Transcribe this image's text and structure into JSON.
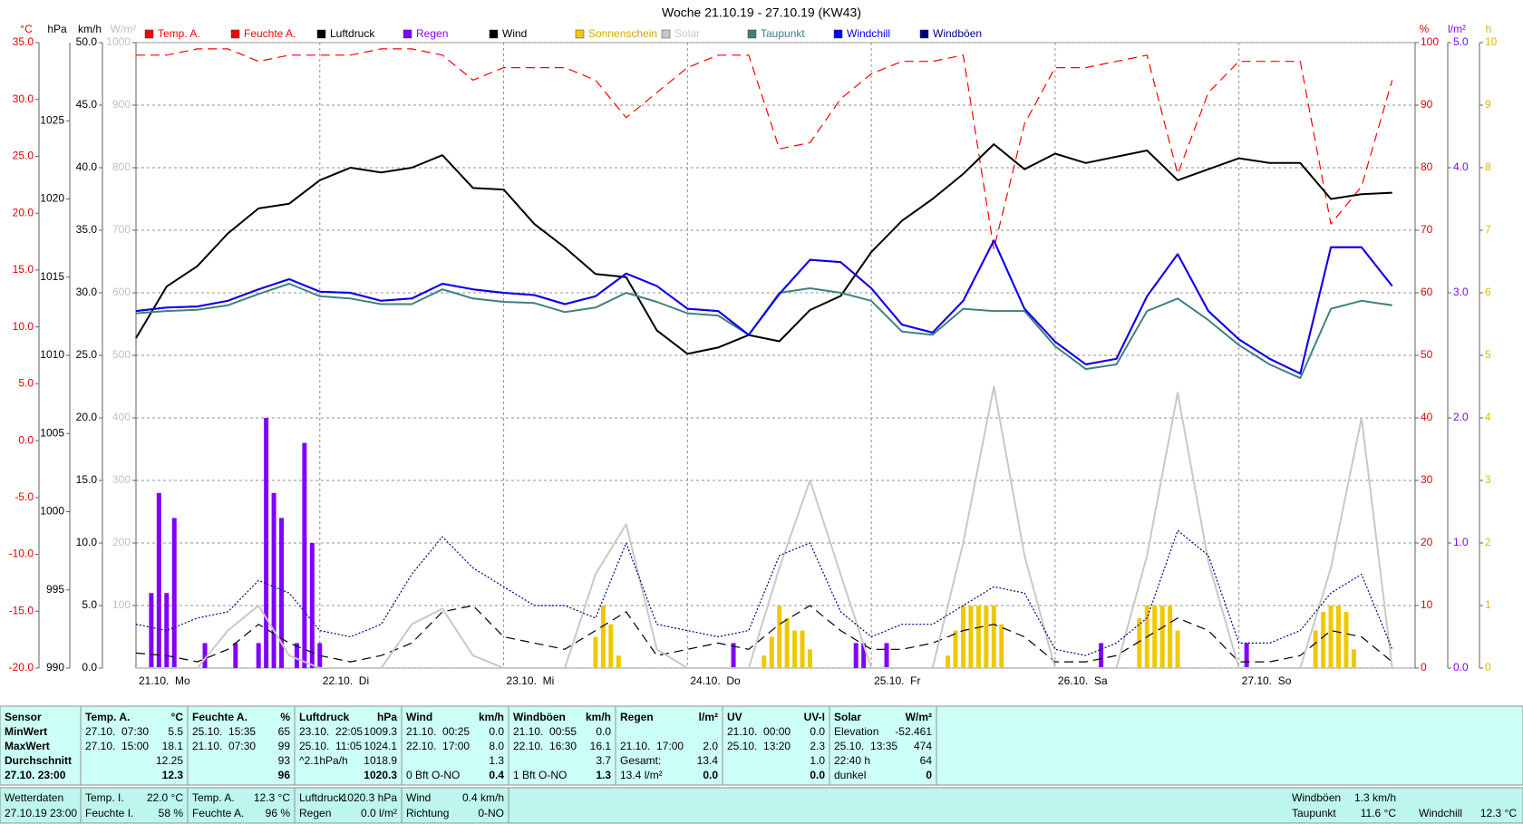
{
  "chart_data": {
    "type": "line",
    "title": "Woche 21.10.19 - 27.10.19 (KW43)",
    "legend": "top",
    "grid": true,
    "x": [
      0,
      4,
      8,
      12,
      16,
      20,
      24,
      28,
      32,
      36,
      40,
      44,
      48,
      52,
      56,
      60,
      64,
      68,
      72,
      76,
      80,
      84,
      88,
      92,
      96,
      100,
      104,
      108,
      112,
      116,
      120,
      124,
      128,
      132,
      136,
      140,
      144,
      148,
      152,
      156,
      160,
      164
    ],
    "xlim": [
      0,
      167
    ],
    "xticks": [
      {
        "value": 0,
        "label": "21.10.  Mo"
      },
      {
        "value": 24,
        "label": "22.10.  Di"
      },
      {
        "value": 48,
        "label": "23.10.  Mi"
      },
      {
        "value": 72,
        "label": "24.10.  Do"
      },
      {
        "value": 96,
        "label": "25.10.  Fr"
      },
      {
        "value": 120,
        "label": "26.10.  Sa"
      },
      {
        "value": 144,
        "label": "27.10.  So"
      }
    ],
    "ylabel": "°C",
    "ylim": [
      -20,
      35
    ],
    "yticks": [
      {
        "value": -20,
        "label": "-20.0"
      },
      {
        "value": -15,
        "label": "-15.0"
      },
      {
        "value": -10,
        "label": "-10.0"
      },
      {
        "value": -5,
        "label": "-5.0"
      },
      {
        "value": 0,
        "label": "0.0"
      },
      {
        "value": 5,
        "label": "5.0"
      },
      {
        "value": 10,
        "label": "10.0"
      },
      {
        "value": 15,
        "label": "15.0"
      },
      {
        "value": 20,
        "label": "20.0"
      },
      {
        "value": 25,
        "label": "25.0"
      },
      {
        "value": 30,
        "label": "30.0"
      },
      {
        "value": 35,
        "label": "35.0"
      }
    ],
    "y2label": "hPa",
    "y2lim": [
      990,
      1030
    ],
    "y2ticks": [
      990,
      995,
      1000,
      1005,
      1010,
      1015,
      1020,
      1025
    ],
    "y3label": "km/h",
    "y3lim": [
      0,
      50
    ],
    "y3ticks": [
      {
        "value": 0,
        "label": "0.0"
      },
      {
        "value": 5,
        "label": "5.0"
      },
      {
        "value": 10,
        "label": "10.0"
      },
      {
        "value": 15,
        "label": "15.0"
      },
      {
        "value": 20,
        "label": "20.0"
      },
      {
        "value": 25,
        "label": "25.0"
      },
      {
        "value": 30,
        "label": "30.0"
      },
      {
        "value": 35,
        "label": "35.0"
      },
      {
        "value": 40,
        "label": "40.0"
      },
      {
        "value": 45,
        "label": "45.0"
      },
      {
        "value": 50,
        "label": "50.0"
      }
    ],
    "y4label": "W/m²",
    "y4lim": [
      0,
      1000
    ],
    "y4ticks": [
      100,
      200,
      300,
      400,
      500,
      600,
      700,
      800,
      900,
      1000
    ],
    "y5label": "%",
    "y5lim": [
      0,
      100
    ],
    "y5ticks": [
      0,
      10,
      20,
      30,
      40,
      50,
      60,
      70,
      80,
      90,
      100
    ],
    "y6label": "l/m²",
    "y6lim": [
      0,
      5
    ],
    "y6ticks": [
      {
        "value": 0,
        "label": "0.0"
      },
      {
        "value": 1,
        "label": "1.0"
      },
      {
        "value": 2,
        "label": "2.0"
      },
      {
        "value": 3,
        "label": "3.0"
      },
      {
        "value": 4,
        "label": "4.0"
      },
      {
        "value": 5,
        "label": "5.0"
      }
    ],
    "y7label": "h",
    "y7lim": [
      0,
      10
    ],
    "y7ticks": [
      0,
      1,
      2,
      3,
      4,
      5,
      6,
      7,
      8,
      9,
      10
    ],
    "series": [
      {
        "name": "Temp. A.",
        "color": "#ff0000",
        "axis": "y",
        "line_style": "solid",
        "values": [
          11.4,
          11.7,
          11.8,
          12.3,
          13.3,
          14.2,
          13.1,
          13.0,
          12.3,
          12.5,
          13.8,
          13.3,
          13.0,
          12.8,
          12.0,
          12.7,
          14.7,
          13.6,
          11.6,
          11.4,
          9.3,
          12.9,
          15.9,
          15.7,
          13.4,
          10.2,
          9.5,
          12.3,
          17.6,
          11.6,
          8.7,
          6.7,
          7.2,
          12.7,
          16.4,
          11.4,
          8.9,
          7.2,
          5.9,
          17.0,
          17.0,
          13.6
        ]
      },
      {
        "name": "Feuchte A.",
        "color": "#ff0000",
        "axis": "y5",
        "line_style": "dashed",
        "values": [
          98,
          98,
          99,
          99,
          97,
          98,
          98,
          98,
          99,
          99,
          98,
          94,
          96,
          96,
          96,
          94,
          88,
          92,
          96,
          98,
          98,
          83,
          84,
          91,
          95,
          97,
          97,
          98,
          67,
          87,
          96,
          96,
          97,
          98,
          79,
          92,
          97,
          97,
          97,
          71,
          77,
          94
        ]
      },
      {
        "name": "Luftdruck",
        "color": "#000000",
        "axis": "y2",
        "line_style": "solid",
        "values": [
          1011.1,
          1014.4,
          1015.7,
          1017.8,
          1019.4,
          1019.7,
          1021.2,
          1022.0,
          1021.7,
          1022.0,
          1022.8,
          1020.7,
          1020.6,
          1018.4,
          1016.9,
          1015.2,
          1015.0,
          1011.6,
          1010.1,
          1010.5,
          1011.3,
          1010.9,
          1012.9,
          1013.8,
          1016.6,
          1018.6,
          1020.0,
          1021.6,
          1023.5,
          1021.9,
          1022.9,
          1022.3,
          1022.7,
          1023.1,
          1021.2,
          1021.9,
          1022.6,
          1022.3,
          1022.3,
          1020.0,
          1020.3,
          1020.4
        ]
      },
      {
        "name": "Regen",
        "color": "#8000ff",
        "axis": "y6",
        "type": "bar",
        "x": [
          2,
          3,
          4,
          5,
          9,
          13,
          16,
          17,
          18,
          19,
          21,
          22,
          23,
          24,
          78,
          94,
          95,
          98,
          126,
          145
        ],
        "values": [
          0.6,
          1.4,
          0.6,
          1.2,
          0.2,
          0.2,
          0.2,
          2.0,
          1.4,
          1.2,
          0.2,
          1.8,
          1.0,
          0.2,
          0.2,
          0.2,
          0.2,
          0.2,
          0.2,
          0.2
        ]
      },
      {
        "name": "Wind",
        "color": "#000000",
        "axis": "y3",
        "line_style": "dashed",
        "values": [
          1.2,
          1.0,
          0.5,
          1.5,
          3.5,
          2.0,
          1.0,
          0.5,
          1.0,
          2.0,
          4.5,
          5.0,
          2.5,
          2.0,
          1.5,
          3.0,
          4.5,
          1.0,
          1.5,
          2.0,
          1.5,
          3.5,
          5.0,
          3.0,
          1.5,
          1.5,
          2.0,
          3.0,
          3.5,
          2.5,
          0.5,
          0.5,
          1.0,
          2.5,
          4.0,
          3.0,
          0.5,
          0.5,
          1.0,
          3.0,
          2.5,
          0.5
        ]
      },
      {
        "name": "Sonnenschein",
        "color": "#f0c800",
        "axis": "y7",
        "type": "bar",
        "x": [
          60,
          61,
          62,
          63,
          82,
          83,
          84,
          85,
          86,
          87,
          88,
          106,
          107,
          108,
          109,
          110,
          111,
          112,
          113,
          131,
          132,
          133,
          134,
          135,
          136,
          154,
          155,
          156,
          157,
          158,
          159
        ],
        "values": [
          0.5,
          1.0,
          0.7,
          0.2,
          0.2,
          0.5,
          1.0,
          0.8,
          0.6,
          0.6,
          0.3,
          0.2,
          0.6,
          1.0,
          1.0,
          1.0,
          1.0,
          1.0,
          0.7,
          0.8,
          1.0,
          1.0,
          1.0,
          1.0,
          0.6,
          0.6,
          0.9,
          1.0,
          1.0,
          0.9,
          0.3
        ]
      },
      {
        "name": "Solar",
        "color": "#c8c8c8",
        "axis": "y4",
        "line_style": "solid",
        "values": [
          0,
          0,
          0,
          60,
          100,
          20,
          0,
          0,
          0,
          70,
          95,
          20,
          0,
          0,
          0,
          150,
          230,
          30,
          0,
          0,
          0,
          160,
          300,
          150,
          0,
          0,
          0,
          200,
          450,
          180,
          0,
          0,
          0,
          180,
          440,
          170,
          0,
          0,
          0,
          160,
          400,
          0
        ]
      },
      {
        "name": "Taupunkt",
        "color": "#408080",
        "axis": "y",
        "line_style": "solid",
        "values": [
          11.2,
          11.4,
          11.5,
          11.9,
          12.9,
          13.8,
          12.7,
          12.5,
          12.0,
          12.0,
          13.3,
          12.5,
          12.2,
          12.1,
          11.3,
          11.7,
          13.0,
          12.2,
          11.2,
          11.0,
          9.3,
          13.0,
          13.4,
          13.0,
          12.3,
          9.6,
          9.3,
          11.6,
          11.4,
          11.4,
          8.3,
          6.3,
          6.7,
          11.4,
          12.5,
          10.6,
          8.4,
          6.7,
          5.5,
          11.6,
          12.3,
          11.9
        ]
      },
      {
        "name": "Windchill",
        "color": "#0000ff",
        "axis": "y",
        "line_style": "solid",
        "values": [
          11.4,
          11.7,
          11.8,
          12.3,
          13.3,
          14.2,
          13.1,
          13.0,
          12.3,
          12.5,
          13.8,
          13.3,
          13.0,
          12.8,
          12.0,
          12.7,
          14.7,
          13.6,
          11.6,
          11.4,
          9.3,
          12.9,
          15.9,
          15.7,
          13.4,
          10.2,
          9.5,
          12.3,
          17.6,
          11.6,
          8.7,
          6.7,
          7.2,
          12.7,
          16.4,
          11.4,
          8.9,
          7.2,
          5.9,
          17.0,
          17.0,
          13.6
        ]
      },
      {
        "name": "Windböen",
        "color": "#000080",
        "axis": "y3",
        "line_style": "dotted",
        "values": [
          3.5,
          3.0,
          4.0,
          4.5,
          7.0,
          6.0,
          3.0,
          2.5,
          3.5,
          7.5,
          10.5,
          8.0,
          6.5,
          5.0,
          5.0,
          4.0,
          10.0,
          3.5,
          3.0,
          2.5,
          3.0,
          9.0,
          10.0,
          4.5,
          2.5,
          3.5,
          3.5,
          5.0,
          6.5,
          6.0,
          1.5,
          1.0,
          2.0,
          4.0,
          11.0,
          9.0,
          2.0,
          2.0,
          3.0,
          6.0,
          7.5,
          1.5
        ]
      }
    ]
  },
  "stats": {
    "columns": [
      {
        "title": "Sensor",
        "rows": [
          "MinWert",
          "MaxWert",
          "Durchschnitt",
          "27.10. 23:00"
        ]
      },
      {
        "title": "Temp. A.",
        "unit": "°C",
        "rows": [
          [
            "27.10.  07:30",
            "5.5"
          ],
          [
            "27.10.  15:00",
            "18.1"
          ],
          [
            null,
            "12.25"
          ],
          [
            null,
            "12.3"
          ]
        ]
      },
      {
        "title": "Feuchte A.",
        "unit": "%",
        "rows": [
          [
            "25.10.  15:35",
            "65"
          ],
          [
            "21.10.  07:30",
            "99"
          ],
          [
            null,
            "93"
          ],
          [
            null,
            "96"
          ]
        ]
      },
      {
        "title": "Luftdruck",
        "unit": "hPa",
        "rows": [
          [
            "23.10.  22:05",
            "1009.3"
          ],
          [
            "25.10.  11:05",
            "1024.1"
          ],
          [
            "^2.1hPa/h",
            "1018.9"
          ],
          [
            null,
            "1020.3"
          ]
        ]
      },
      {
        "title": "Wind",
        "unit": "km/h",
        "rows": [
          [
            "21.10.  00:25",
            "0.0"
          ],
          [
            "22.10.  17:00",
            "8.0"
          ],
          [
            null,
            "1.3"
          ],
          [
            "0 Bft O-NO",
            "0.4"
          ]
        ]
      },
      {
        "title": "Windböen",
        "unit": "km/h",
        "rows": [
          [
            "21.10.  00:55",
            "0.0"
          ],
          [
            "22.10.  16:30",
            "16.1"
          ],
          [
            null,
            "3.7"
          ],
          [
            "1 Bft O-NO",
            "1.3"
          ]
        ]
      },
      {
        "title": "Regen",
        "unit": "l/m²",
        "rows": [
          null,
          [
            "21.10.  17:00",
            "2.0"
          ],
          [
            "Gesamt:",
            "13.4"
          ],
          [
            "13.4 l/m²",
            "0.0"
          ]
        ]
      },
      {
        "title": "UV",
        "unit": "UV-I",
        "rows": [
          [
            "21.10.  00:00",
            "0.0"
          ],
          [
            "25.10.  13:20",
            "2.3"
          ],
          [
            null,
            "1.0"
          ],
          [
            null,
            "0.0"
          ]
        ]
      },
      {
        "title": "Solar",
        "unit": "W/m²",
        "rows": [
          [
            "Elevation",
            "-52.461"
          ],
          [
            "25.10.  13:35",
            "474"
          ],
          [
            "22:40 h",
            "64"
          ],
          [
            "dunkel",
            "0"
          ]
        ]
      }
    ]
  },
  "current": {
    "groups": [
      {
        "rows": [
          [
            "Wetterdaten",
            null
          ],
          [
            "27.10.19 23:00",
            null
          ]
        ]
      },
      {
        "rows": [
          [
            "Temp. I.",
            "22.0 °C"
          ],
          [
            "Feuchte I.",
            "58 %"
          ]
        ]
      },
      {
        "rows": [
          [
            "Temp. A.",
            "12.3 °C"
          ],
          [
            "Feuchte A.",
            "96 %"
          ]
        ]
      },
      {
        "rows": [
          [
            "Luftdruck",
            "1020.3 hPa"
          ],
          [
            "Regen",
            "0.0 l/m²"
          ]
        ]
      },
      {
        "rows": [
          [
            "Wind",
            "0.4 km/h"
          ],
          [
            "Richtung",
            "0-NO"
          ]
        ]
      },
      {
        "rows": [
          [
            "Windböen",
            "1.3 km/h"
          ],
          [
            "Taupunkt",
            "11.6 °C"
          ]
        ]
      },
      {
        "rows": [
          null,
          [
            "Windchill",
            "12.3 °C"
          ]
        ]
      }
    ]
  }
}
